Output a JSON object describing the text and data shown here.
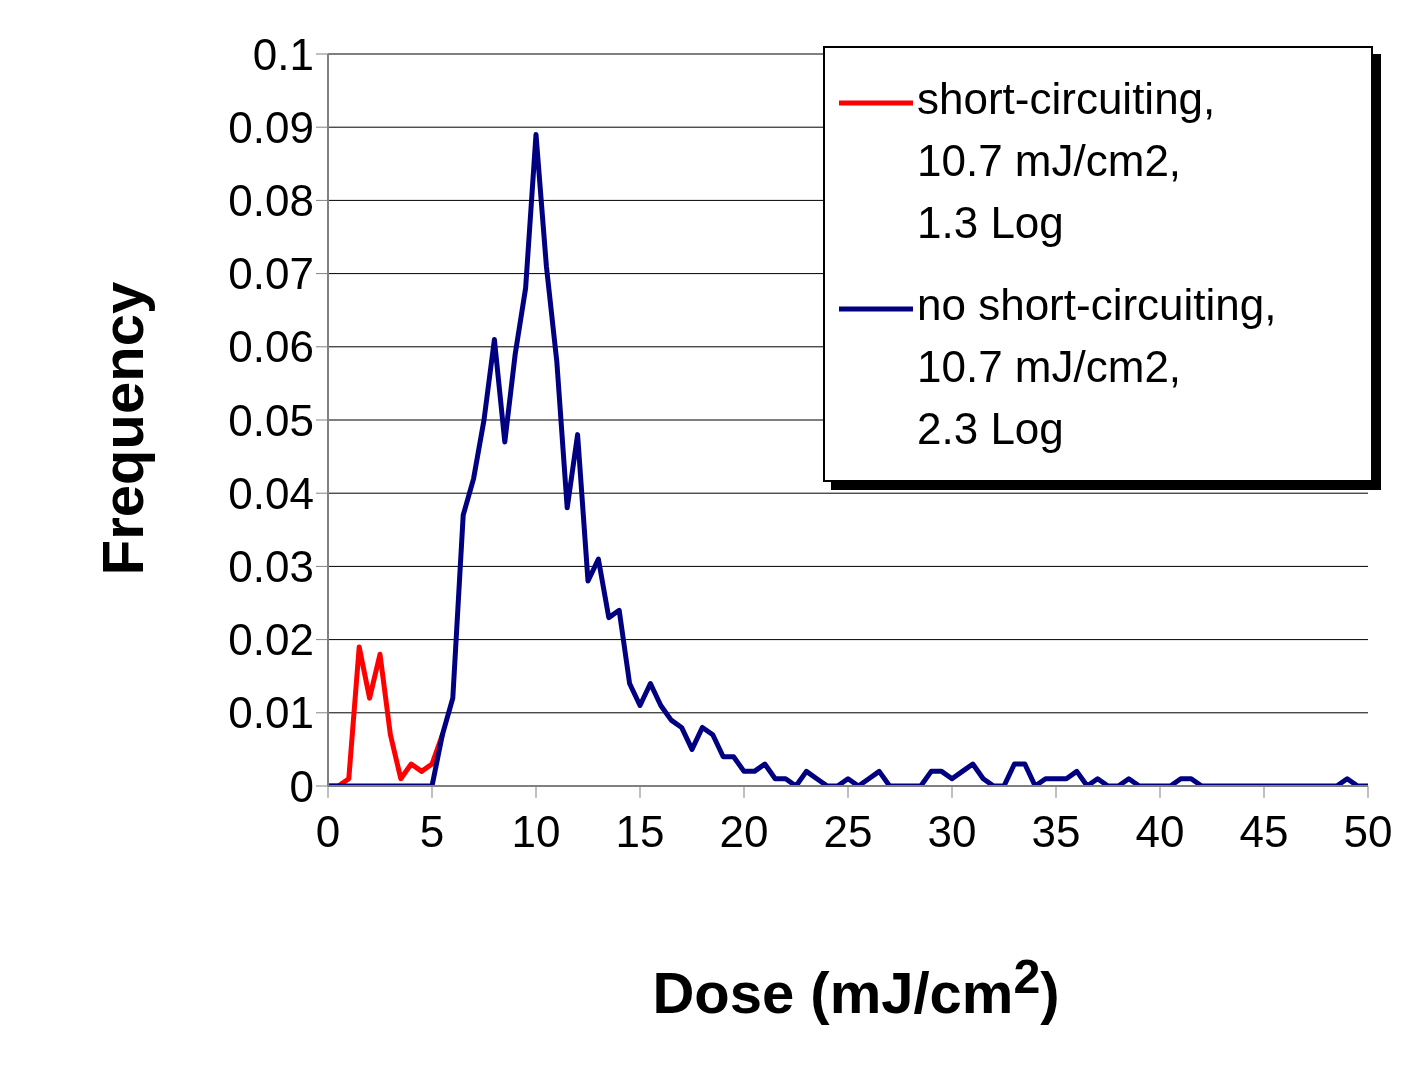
{
  "chart_data": {
    "type": "line",
    "xlabel": "Dose (mJ/cm$^{2}$)",
    "ylabel": "Frequency",
    "xlim": [
      0,
      50
    ],
    "xticks": [
      0,
      5,
      10,
      15,
      20,
      25,
      30,
      35,
      40,
      45,
      50
    ],
    "ylim": [
      0,
      0.1
    ],
    "yticks": [
      0,
      0.01,
      0.02,
      0.03,
      0.04,
      0.05,
      0.06,
      0.07,
      0.08,
      0.09,
      0.1
    ],
    "grid": "y",
    "legend": "top right",
    "series": [
      {
        "name": "short-circuiting, 10.7 mJ/cm2, 1.3 Log",
        "color": "#ff0000",
        "x": [
          0,
          0.5,
          1,
          1.5,
          2,
          2.5,
          3,
          3.5,
          4,
          4.5,
          5,
          5.5
        ],
        "values": [
          0,
          0,
          0.001,
          0.019,
          0.012,
          0.018,
          0.007,
          0.001,
          0.003,
          0.002,
          0.003,
          0.007
        ]
      },
      {
        "name": "no short-circuiting, 10.7 mJ/cm2, 2.3 Log",
        "color": "#000080",
        "x": [
          0,
          5,
          5.5,
          6,
          6.5,
          7,
          7.5,
          8,
          8.5,
          9,
          9.5,
          10,
          10.5,
          11,
          11.5,
          12,
          12.5,
          13,
          13.5,
          14,
          14.5,
          15,
          15.5,
          16,
          16.5,
          17,
          17.5,
          18,
          18.5,
          19,
          19.5,
          20,
          20.5,
          21,
          21.5,
          22,
          22.5,
          23,
          23.5,
          24,
          24.5,
          25,
          25.5,
          26,
          26.5,
          27,
          28.5,
          29,
          29.5,
          30,
          30.5,
          31,
          31.5,
          32,
          32.5,
          33,
          33.5,
          34,
          34.5,
          35,
          35.5,
          36,
          36.5,
          37,
          37.5,
          38,
          38.5,
          39,
          40.5,
          41,
          41.5,
          42,
          48.5,
          49,
          49.5,
          50
        ],
        "values": [
          0,
          0,
          0.007,
          0.012,
          0.037,
          0.042,
          0.05,
          0.061,
          0.047,
          0.059,
          0.068,
          0.089,
          0.071,
          0.058,
          0.038,
          0.048,
          0.028,
          0.031,
          0.023,
          0.024,
          0.014,
          0.011,
          0.014,
          0.011,
          0.009,
          0.008,
          0.005,
          0.008,
          0.007,
          0.004,
          0.004,
          0.002,
          0.002,
          0.003,
          0.001,
          0.001,
          0,
          0.002,
          0.001,
          0,
          0,
          0.001,
          0,
          0.001,
          0.002,
          0,
          0,
          0.002,
          0.002,
          0.001,
          0.002,
          0.003,
          0.001,
          0,
          0,
          0.003,
          0.003,
          0,
          0.001,
          0.001,
          0.001,
          0.002,
          0,
          0.001,
          0,
          0,
          0.001,
          0,
          0,
          0.001,
          0.001,
          0,
          0,
          0.001,
          0,
          0
        ]
      }
    ]
  }
}
